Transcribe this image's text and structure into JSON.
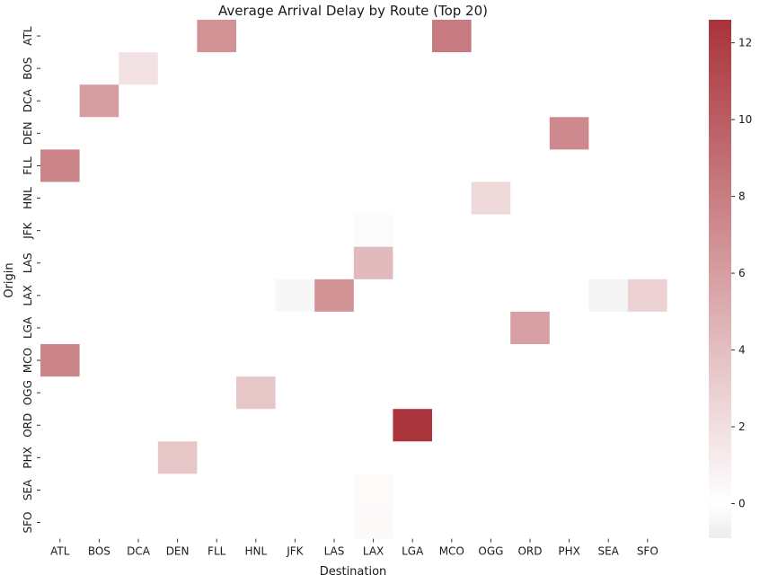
{
  "chart_data": {
    "type": "heatmap",
    "title": "Average Arrival Delay by Route (Top 20)",
    "xlabel": "Destination",
    "ylabel": "Origin",
    "x_categories": [
      "ATL",
      "BOS",
      "DCA",
      "DEN",
      "FLL",
      "HNL",
      "JFK",
      "LAS",
      "LAX",
      "LGA",
      "MCO",
      "OGG",
      "ORD",
      "PHX",
      "SEA",
      "SFO"
    ],
    "y_categories": [
      "ATL",
      "BOS",
      "DCA",
      "DEN",
      "FLL",
      "HNL",
      "JFK",
      "LAS",
      "LAX",
      "LGA",
      "MCO",
      "OGG",
      "ORD",
      "PHX",
      "SEA",
      "SFO"
    ],
    "cells": [
      {
        "origin": "ATL",
        "destination": "FLL",
        "value": 6.8
      },
      {
        "origin": "ATL",
        "destination": "MCO",
        "value": 8.2
      },
      {
        "origin": "BOS",
        "destination": "DCA",
        "value": 1.8
      },
      {
        "origin": "DCA",
        "destination": "BOS",
        "value": 6.0
      },
      {
        "origin": "DEN",
        "destination": "PHX",
        "value": 7.3
      },
      {
        "origin": "FLL",
        "destination": "ATL",
        "value": 7.6
      },
      {
        "origin": "HNL",
        "destination": "OGG",
        "value": 2.3
      },
      {
        "origin": "JFK",
        "destination": "LAX",
        "value": -0.2
      },
      {
        "origin": "LAS",
        "destination": "LAX",
        "value": 4.3
      },
      {
        "origin": "LAX",
        "destination": "JFK",
        "value": -0.4
      },
      {
        "origin": "LAX",
        "destination": "LAS",
        "value": 6.7
      },
      {
        "origin": "LAX",
        "destination": "SEA",
        "value": -0.5
      },
      {
        "origin": "LAX",
        "destination": "SFO",
        "value": 2.8
      },
      {
        "origin": "LGA",
        "destination": "ORD",
        "value": 5.9
      },
      {
        "origin": "MCO",
        "destination": "ATL",
        "value": 7.6
      },
      {
        "origin": "OGG",
        "destination": "HNL",
        "value": 3.5
      },
      {
        "origin": "ORD",
        "destination": "LGA",
        "value": 12.5
      },
      {
        "origin": "PHX",
        "destination": "DEN",
        "value": 3.5
      },
      {
        "origin": "SEA",
        "destination": "LAX",
        "value": 0.3
      },
      {
        "origin": "SFO",
        "destination": "LAX",
        "value": 0.4
      }
    ],
    "colorbar": {
      "vmin": -0.9,
      "vmax": 12.6,
      "ticks": [
        0,
        2,
        4,
        6,
        8,
        10,
        12
      ],
      "colormap": "vlag",
      "colors": {
        "low": "#ececec",
        "mid": "#ffffff",
        "high": "#a9333a"
      }
    },
    "grid": false,
    "legend": "colorbar-right"
  }
}
